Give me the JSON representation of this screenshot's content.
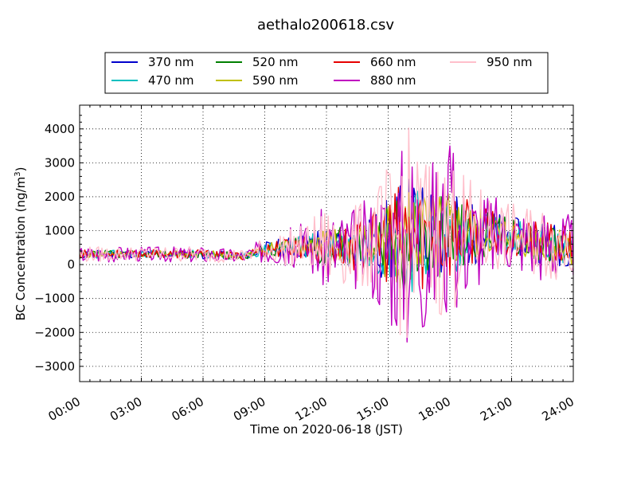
{
  "chart_data": {
    "type": "line",
    "title": "aethalo200618.csv",
    "xlabel": "Time on 2020-06-18 (JST)",
    "ylabel_main": "BC Concentration (ng/m",
    "ylabel_sup": "3",
    "ylabel_close": ")",
    "xlim_hours": [
      0,
      24
    ],
    "ylim": [
      -3450,
      4700
    ],
    "x_ticks": [
      {
        "hour": 0,
        "label": "00:00"
      },
      {
        "hour": 3,
        "label": "03:00"
      },
      {
        "hour": 6,
        "label": "06:00"
      },
      {
        "hour": 9,
        "label": "09:00"
      },
      {
        "hour": 12,
        "label": "12:00"
      },
      {
        "hour": 15,
        "label": "15:00"
      },
      {
        "hour": 18,
        "label": "18:00"
      },
      {
        "hour": 21,
        "label": "21:00"
      },
      {
        "hour": 24,
        "label": "24:00"
      }
    ],
    "y_ticks": [
      {
        "value": -3000,
        "label": "−3000"
      },
      {
        "value": -2000,
        "label": "−2000"
      },
      {
        "value": -1000,
        "label": "−1000"
      },
      {
        "value": 0,
        "label": "0"
      },
      {
        "value": 1000,
        "label": "1000"
      },
      {
        "value": 2000,
        "label": "2000"
      },
      {
        "value": 3000,
        "label": "3000"
      },
      {
        "value": 4000,
        "label": "4000"
      }
    ],
    "grid": true,
    "legend_position": "top-center",
    "series": [
      {
        "name": "370 nm",
        "color": "#0000cc",
        "scale": 0.55,
        "offset": 0.5,
        "seed": 11
      },
      {
        "name": "470 nm",
        "color": "#00bfbf",
        "scale": 0.5,
        "offset": 0.5,
        "seed": 23
      },
      {
        "name": "520 nm",
        "color": "#008000",
        "scale": 0.5,
        "offset": 0.5,
        "seed": 37
      },
      {
        "name": "590 nm",
        "color": "#bfbf00",
        "scale": 0.5,
        "offset": 0.5,
        "seed": 41
      },
      {
        "name": "660 nm",
        "color": "#e60000",
        "scale": 0.55,
        "offset": 0.5,
        "seed": 53
      },
      {
        "name": "880 nm",
        "color": "#bf00bf",
        "scale": 1.0,
        "offset": 0.5,
        "seed": 67
      },
      {
        "name": "950 nm",
        "color": "#ffbfcb",
        "scale": 0.95,
        "offset": 0.5,
        "seed": 79
      }
    ],
    "envelope": [
      {
        "hour": 0,
        "mean": 300,
        "amp": 250
      },
      {
        "hour": 3,
        "mean": 320,
        "amp": 220
      },
      {
        "hour": 6,
        "mean": 300,
        "amp": 250
      },
      {
        "hour": 8,
        "mean": 250,
        "amp": 200
      },
      {
        "hour": 9,
        "mean": 450,
        "amp": 400
      },
      {
        "hour": 11,
        "mean": 550,
        "amp": 700
      },
      {
        "hour": 12,
        "mean": 500,
        "amp": 1300
      },
      {
        "hour": 13,
        "mean": 500,
        "amp": 1200
      },
      {
        "hour": 14,
        "mean": 600,
        "amp": 1400
      },
      {
        "hour": 15,
        "mean": 700,
        "amp": 2400
      },
      {
        "hour": 16,
        "mean": 800,
        "amp": 3400
      },
      {
        "hour": 17,
        "mean": 800,
        "amp": 2600
      },
      {
        "hour": 18,
        "mean": 900,
        "amp": 2600
      },
      {
        "hour": 19,
        "mean": 900,
        "amp": 1700
      },
      {
        "hour": 20,
        "mean": 900,
        "amp": 1300
      },
      {
        "hour": 21,
        "mean": 850,
        "amp": 1000
      },
      {
        "hour": 22,
        "mean": 700,
        "amp": 1100
      },
      {
        "hour": 23,
        "mean": 600,
        "amp": 1200
      },
      {
        "hour": 24,
        "mean": 500,
        "amp": 1000
      }
    ]
  }
}
